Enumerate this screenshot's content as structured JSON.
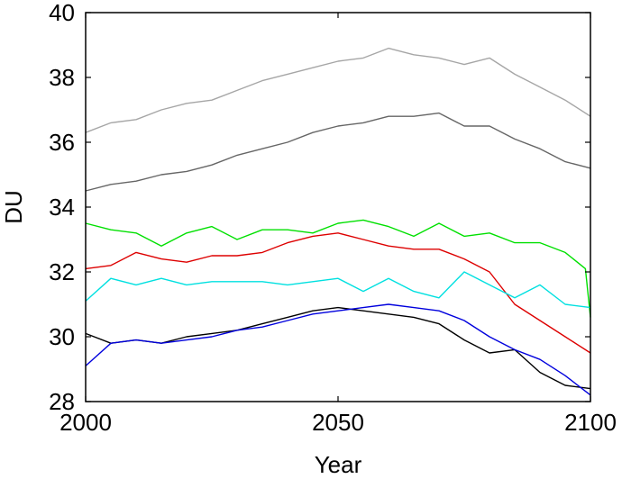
{
  "chart_data": {
    "type": "line",
    "title": "",
    "xlabel": "Year",
    "ylabel": "DU",
    "xlim": [
      2000,
      2100
    ],
    "ylim": [
      28,
      40
    ],
    "xticks": [
      2000,
      2050,
      2100
    ],
    "yticks": [
      28,
      30,
      32,
      34,
      36,
      38,
      40
    ],
    "grid": false,
    "legend": "none",
    "series": [
      {
        "color": "#a6a6a6",
        "x": [
          2000,
          2005,
          2010,
          2015,
          2020,
          2025,
          2030,
          2035,
          2040,
          2045,
          2050,
          2055,
          2060,
          2065,
          2070,
          2075,
          2080,
          2085,
          2090,
          2095,
          2100
        ],
        "y": [
          36.3,
          36.6,
          36.7,
          37.0,
          37.2,
          37.3,
          37.6,
          37.9,
          38.1,
          38.3,
          38.5,
          38.6,
          38.9,
          38.7,
          38.6,
          38.4,
          38.6,
          38.1,
          37.7,
          37.3,
          36.8
        ]
      },
      {
        "color": "#666666",
        "x": [
          2000,
          2005,
          2010,
          2015,
          2020,
          2025,
          2030,
          2035,
          2040,
          2045,
          2050,
          2055,
          2060,
          2065,
          2070,
          2075,
          2080,
          2085,
          2090,
          2095,
          2100
        ],
        "y": [
          34.5,
          34.7,
          34.8,
          35.0,
          35.1,
          35.3,
          35.6,
          35.8,
          36.0,
          36.3,
          36.5,
          36.6,
          36.8,
          36.8,
          36.9,
          36.5,
          36.5,
          36.1,
          35.8,
          35.4,
          35.2
        ]
      },
      {
        "color": "#00e000",
        "x": [
          2000,
          2005,
          2010,
          2015,
          2020,
          2025,
          2030,
          2035,
          2040,
          2045,
          2050,
          2055,
          2060,
          2065,
          2070,
          2075,
          2080,
          2085,
          2090,
          2095,
          2099,
          2100
        ],
        "y": [
          33.5,
          33.3,
          33.2,
          32.8,
          33.2,
          33.4,
          33.0,
          33.3,
          33.3,
          33.2,
          33.5,
          33.6,
          33.4,
          33.1,
          33.5,
          33.1,
          33.2,
          32.9,
          32.9,
          32.6,
          32.1,
          30.6
        ]
      },
      {
        "color": "#dd0000",
        "x": [
          2000,
          2005,
          2010,
          2015,
          2020,
          2025,
          2030,
          2035,
          2040,
          2045,
          2050,
          2055,
          2060,
          2065,
          2070,
          2075,
          2080,
          2085,
          2090,
          2095,
          2100
        ],
        "y": [
          32.1,
          32.2,
          32.6,
          32.4,
          32.3,
          32.5,
          32.5,
          32.6,
          32.9,
          33.1,
          33.2,
          33.0,
          32.8,
          32.7,
          32.7,
          32.4,
          32.0,
          31.0,
          30.5,
          30.0,
          29.5
        ]
      },
      {
        "color": "#00e0e0",
        "x": [
          2000,
          2005,
          2010,
          2015,
          2020,
          2025,
          2030,
          2035,
          2040,
          2045,
          2050,
          2055,
          2060,
          2065,
          2070,
          2075,
          2080,
          2085,
          2090,
          2095,
          2100
        ],
        "y": [
          31.1,
          31.8,
          31.6,
          31.8,
          31.6,
          31.7,
          31.7,
          31.7,
          31.6,
          31.7,
          31.8,
          31.4,
          31.8,
          31.4,
          31.2,
          32.0,
          31.6,
          31.2,
          31.6,
          31.0,
          30.9
        ]
      },
      {
        "color": "#000000",
        "x": [
          2000,
          2005,
          2010,
          2015,
          2020,
          2025,
          2030,
          2035,
          2040,
          2045,
          2050,
          2055,
          2060,
          2065,
          2070,
          2075,
          2080,
          2085,
          2090,
          2095,
          2100
        ],
        "y": [
          30.1,
          29.8,
          29.9,
          29.8,
          30.0,
          30.1,
          30.2,
          30.4,
          30.6,
          30.8,
          30.9,
          30.8,
          30.7,
          30.6,
          30.4,
          29.9,
          29.5,
          29.6,
          28.9,
          28.5,
          28.4
        ]
      },
      {
        "color": "#0000dd",
        "x": [
          2000,
          2005,
          2010,
          2015,
          2020,
          2025,
          2030,
          2035,
          2040,
          2045,
          2050,
          2055,
          2060,
          2065,
          2070,
          2075,
          2080,
          2085,
          2090,
          2095,
          2100
        ],
        "y": [
          29.1,
          29.8,
          29.9,
          29.8,
          29.9,
          30.0,
          30.2,
          30.3,
          30.5,
          30.7,
          30.8,
          30.9,
          31.0,
          30.9,
          30.8,
          30.5,
          30.0,
          29.6,
          29.3,
          28.8,
          28.2
        ]
      }
    ]
  }
}
